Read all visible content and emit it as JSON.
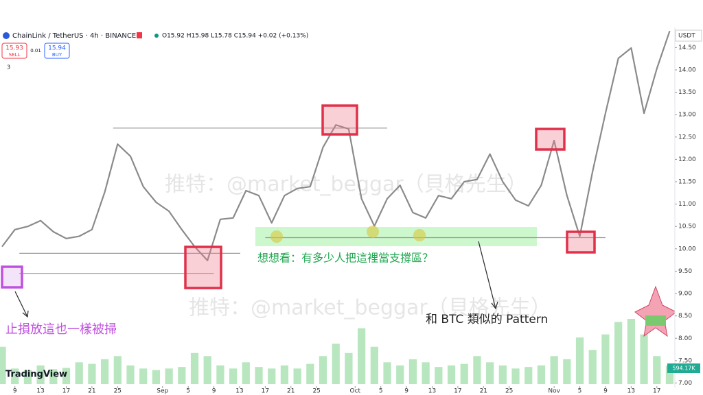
{
  "header": {
    "symbol": "ChainLink / TetherUS · 4h · BINANCE",
    "ohlc": "O15.92 H15.98 L15.78 C15.94 +0.02 (+0.13%)",
    "sell_price": "15.93",
    "sell": "SELL",
    "spread": "0.01",
    "buy_price": "15.94",
    "buy": "BUY",
    "indicators": "3",
    "currency": "USDT",
    "logo": "TradingView"
  },
  "chart_data": {
    "type": "line",
    "title": "ChainLink / TetherUS · 4h · BINANCE",
    "x": [
      0,
      2,
      4,
      6,
      8,
      10,
      12,
      14,
      16,
      18,
      20,
      22,
      24,
      26,
      28,
      30,
      32,
      34,
      36,
      38,
      40,
      42,
      44,
      46,
      48,
      50,
      52,
      54,
      56,
      58,
      60,
      62,
      64,
      66,
      68,
      70,
      72,
      74,
      76,
      78,
      80,
      82,
      84,
      86,
      88,
      90,
      92,
      94,
      96,
      98,
      100,
      102,
      104
    ],
    "values": [
      10.05,
      10.43,
      10.5,
      10.63,
      10.38,
      10.23,
      10.28,
      10.43,
      11.27,
      12.34,
      12.07,
      11.39,
      11.04,
      10.84,
      10.43,
      10.05,
      9.74,
      10.66,
      10.69,
      11.3,
      11.19,
      10.58,
      11.19,
      11.35,
      11.39,
      12.27,
      12.77,
      12.68,
      11.12,
      10.51,
      11.12,
      11.42,
      10.81,
      10.69,
      11.19,
      11.12,
      11.5,
      11.55,
      12.12,
      11.5,
      11.09,
      10.96,
      11.42,
      12.42,
      11.19,
      10.28,
      11.73,
      13.03,
      14.26,
      14.49,
      13.03,
      14.03,
      14.87
    ],
    "volume": [
      1200,
      500,
      450,
      600,
      480,
      520,
      700,
      650,
      800,
      900,
      600,
      500,
      450,
      500,
      550,
      1000,
      900,
      600,
      500,
      700,
      550,
      500,
      600,
      500,
      650,
      900,
      1300,
      1000,
      1800,
      1200,
      700,
      600,
      800,
      700,
      550,
      600,
      650,
      900,
      700,
      600,
      500,
      550,
      600,
      900,
      800,
      1500,
      1100,
      1600,
      2000,
      2100,
      1600,
      900,
      594.17
    ],
    "volume_label": "594.17K",
    "xlim": [
      0,
      104.7
    ],
    "xticks": [
      {
        "value": 2,
        "label": "9"
      },
      {
        "value": 6,
        "label": "13"
      },
      {
        "value": 10,
        "label": "17"
      },
      {
        "value": 14,
        "label": "21"
      },
      {
        "value": 18,
        "label": "25"
      },
      {
        "value": 25,
        "label": "Sep"
      },
      {
        "value": 29,
        "label": "5"
      },
      {
        "value": 33,
        "label": "9"
      },
      {
        "value": 37,
        "label": "13"
      },
      {
        "value": 41,
        "label": "17"
      },
      {
        "value": 45,
        "label": "21"
      },
      {
        "value": 49,
        "label": "25"
      },
      {
        "value": 55,
        "label": "Oct"
      },
      {
        "value": 59,
        "label": "5"
      },
      {
        "value": 63,
        "label": "9"
      },
      {
        "value": 67,
        "label": "13"
      },
      {
        "value": 71,
        "label": "17"
      },
      {
        "value": 75,
        "label": "21"
      },
      {
        "value": 79,
        "label": "25"
      },
      {
        "value": 86,
        "label": "Nov"
      },
      {
        "value": 90,
        "label": "5"
      },
      {
        "value": 94,
        "label": "9"
      },
      {
        "value": 98,
        "label": "13"
      },
      {
        "value": 102,
        "label": "17"
      }
    ],
    "ylim": [
      6.9,
      14.95
    ],
    "yticks": [
      {
        "value": 7,
        "label": "7.00"
      },
      {
        "value": 7.5,
        "label": "7.50"
      },
      {
        "value": 8,
        "label": "8.00"
      },
      {
        "value": 8.5,
        "label": "8.50"
      },
      {
        "value": 9,
        "label": "9.00"
      },
      {
        "value": 9.5,
        "label": "9.50"
      },
      {
        "value": 10,
        "label": "10.00"
      },
      {
        "value": 10.5,
        "label": "10.50"
      },
      {
        "value": 11,
        "label": "11.00"
      },
      {
        "value": 11.5,
        "label": "11.50"
      },
      {
        "value": 12,
        "label": "12.00"
      },
      {
        "value": 12.5,
        "label": "12.50"
      },
      {
        "value": 13,
        "label": "13.00"
      },
      {
        "value": 13.5,
        "label": "13.50"
      },
      {
        "value": 14,
        "label": "14.00"
      },
      {
        "value": 14.5,
        "label": "14.50"
      }
    ],
    "levels": [
      {
        "value": 12.7,
        "x": [
          17.3,
          60
        ]
      },
      {
        "value": 10.25,
        "x": [
          41,
          94
        ]
      },
      {
        "value": 9.9,
        "x": [
          2.7,
          37.1
        ]
      },
      {
        "value": 9.45,
        "x": [
          2.7,
          33
        ]
      }
    ],
    "color": "#8a8a8a",
    "volume_color": "#b8e6bf"
  },
  "annotations": {
    "question": "想想看：有多少人把這裡當支撐區？",
    "pattern": "和 BTC 類似的 Pattern",
    "stop_loss": "止損放這也一樣被掃"
  },
  "watermarks": [
    "推特：@market_beggar（貝格先生）",
    "推特：@market_beggar（貝格先生）"
  ]
}
